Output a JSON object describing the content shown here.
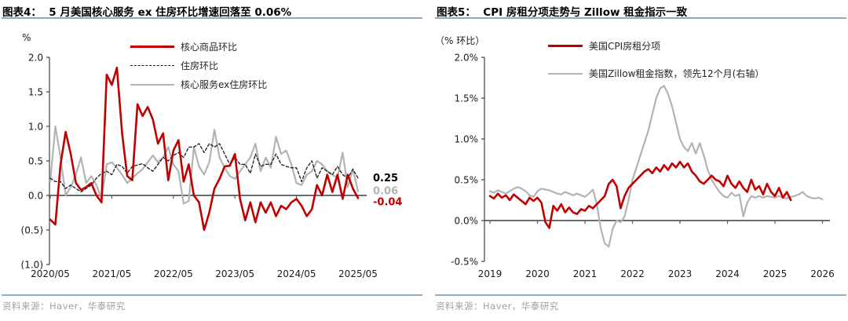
{
  "page": {
    "background": "#FFFFFF",
    "accent_rule_color": "#90A8C1",
    "source_text_color": "#A0A0A0"
  },
  "panels": [
    {
      "title": "图表4：  5 月美国核心服务 ex 住房环比增速回落至 0.06%",
      "source": "资料来源：Haver，华泰研究"
    },
    {
      "title": "图表5：  CPI 房租分项走势与 Zillow 租金指示一致",
      "source": "资料来源：Haver，华泰研究"
    }
  ],
  "chart_data": [
    {
      "type": "line",
      "title": "5月美国核心服务ex住房环比增速回落至0.06%",
      "unit": "%",
      "x_unit": "month",
      "x_start": "2020/05",
      "ylim": [
        -1.0,
        2.0
      ],
      "grid": false,
      "legend_position": "top-center",
      "y_ticks": [
        {
          "label": "2.0",
          "value": 2.0
        },
        {
          "label": "1.5",
          "value": 1.5
        },
        {
          "label": "1.0",
          "value": 1.0
        },
        {
          "label": "0.5",
          "value": 0.5
        },
        {
          "label": "0.0",
          "value": 0.0
        },
        {
          "label": "(0.5)",
          "value": -0.5
        },
        {
          "label": "(1.0)",
          "value": -1.0
        }
      ],
      "x_ticks": [
        {
          "label": "2020/05",
          "month": 0
        },
        {
          "label": "2021/05",
          "month": 12
        },
        {
          "label": "2022/05",
          "month": 24
        },
        {
          "label": "2023/05",
          "month": 36
        },
        {
          "label": "2024/05",
          "month": 48
        },
        {
          "label": "2025/05",
          "month": 60
        }
      ],
      "series": [
        {
          "name": "核心商品环比",
          "color": "#C00000",
          "style": "solid",
          "width": 2.6,
          "values": [
            -0.35,
            -0.42,
            0.45,
            0.92,
            0.6,
            0.18,
            0.08,
            0.12,
            0.18,
            0.0,
            -0.1,
            1.75,
            1.6,
            1.85,
            0.9,
            0.28,
            0.22,
            1.32,
            1.15,
            1.28,
            1.1,
            0.75,
            0.9,
            0.22,
            0.65,
            0.8,
            0.2,
            0.45,
            0.0,
            -0.1,
            -0.5,
            -0.25,
            0.1,
            0.24,
            0.42,
            0.43,
            0.6,
            -0.05,
            -0.36,
            -0.1,
            -0.39,
            -0.1,
            -0.25,
            -0.1,
            -0.3,
            -0.15,
            -0.2,
            -0.1,
            -0.05,
            -0.15,
            -0.3,
            -0.2,
            0.15,
            0.0,
            0.3,
            0.05,
            0.3,
            -0.05,
            0.3,
            0.1,
            -0.04
          ]
        },
        {
          "name": "住房环比",
          "color": "#1A1A1A",
          "style": "dashed",
          "width": 1.3,
          "values": [
            0.25,
            0.2,
            0.2,
            0.1,
            0.15,
            0.1,
            0.05,
            0.1,
            0.15,
            0.25,
            0.32,
            0.35,
            0.3,
            0.45,
            0.42,
            0.32,
            0.42,
            0.44,
            0.46,
            0.4,
            0.35,
            0.45,
            0.55,
            0.5,
            0.58,
            0.62,
            0.55,
            0.7,
            0.7,
            0.75,
            0.62,
            0.75,
            0.7,
            0.75,
            0.6,
            0.45,
            0.55,
            0.45,
            0.45,
            0.32,
            0.6,
            0.42,
            0.45,
            0.45,
            0.6,
            0.45,
            0.42,
            0.4,
            0.4,
            0.2,
            0.4,
            0.5,
            0.25,
            0.4,
            0.35,
            0.3,
            0.42,
            0.3,
            0.25,
            0.38,
            0.25
          ]
        },
        {
          "name": "核心服务ex住房环比",
          "color": "#B3B3B3",
          "style": "solid",
          "width": 2.2,
          "values": [
            0.2,
            1.0,
            0.55,
            0.0,
            0.12,
            0.3,
            0.55,
            0.18,
            0.28,
            0.15,
            -0.05,
            0.45,
            0.48,
            0.4,
            0.3,
            0.18,
            0.25,
            0.32,
            0.38,
            0.48,
            0.58,
            0.48,
            0.55,
            0.7,
            0.45,
            0.35,
            -0.12,
            -0.08,
            0.7,
            0.42,
            0.3,
            0.48,
            0.95,
            0.55,
            0.4,
            0.28,
            0.24,
            0.35,
            0.45,
            0.55,
            0.75,
            0.35,
            0.55,
            0.4,
            0.85,
            0.6,
            0.65,
            0.45,
            0.18,
            0.15,
            0.3,
            0.35,
            0.5,
            0.45,
            0.35,
            0.3,
            0.25,
            0.62,
            0.12,
            0.38,
            0.06
          ]
        }
      ],
      "annotations": [
        {
          "text": "0.25",
          "value": 0.25,
          "color": "#000000"
        },
        {
          "text": "0.06",
          "value": 0.06,
          "color": "#B3B3B3"
        },
        {
          "text": "-0.04",
          "value": -0.04,
          "color": "#C00000"
        }
      ]
    },
    {
      "type": "line",
      "title": "CPI房租分项走势与Zillow租金指示一致",
      "unit": "（% 环比）",
      "x_unit": "month",
      "x_start": "2019/01",
      "ylim": [
        -0.5,
        2.0
      ],
      "grid": false,
      "legend_position": "top-center",
      "y_ticks": [
        {
          "label": "2.0%",
          "value": 2.0
        },
        {
          "label": "1.5%",
          "value": 1.5
        },
        {
          "label": "1.0%",
          "value": 1.0
        },
        {
          "label": "0.5%",
          "value": 0.5
        },
        {
          "label": "0.0%",
          "value": 0.0
        },
        {
          "label": "-0.5%",
          "value": -0.5
        }
      ],
      "x_ticks": [
        {
          "label": "2019",
          "month": 0
        },
        {
          "label": "2020",
          "month": 12
        },
        {
          "label": "2021",
          "month": 24
        },
        {
          "label": "2022",
          "month": 36
        },
        {
          "label": "2023",
          "month": 48
        },
        {
          "label": "2024",
          "month": 60
        },
        {
          "label": "2025",
          "month": 72
        },
        {
          "label": "2026",
          "month": 84
        }
      ],
      "series": [
        {
          "name": "美国CPI房租分项",
          "color": "#C00000",
          "style": "solid",
          "width": 2.6,
          "values": [
            0.3,
            0.27,
            0.33,
            0.28,
            0.31,
            0.25,
            0.32,
            0.28,
            0.24,
            0.2,
            0.28,
            0.24,
            0.28,
            0.22,
            -0.02,
            -0.09,
            0.18,
            0.12,
            0.2,
            0.1,
            0.16,
            0.1,
            0.08,
            0.14,
            0.12,
            0.18,
            0.15,
            0.2,
            0.25,
            0.3,
            0.45,
            0.5,
            0.42,
            0.15,
            0.3,
            0.4,
            0.45,
            0.5,
            0.55,
            0.6,
            0.63,
            0.58,
            0.65,
            0.6,
            0.68,
            0.62,
            0.7,
            0.65,
            0.72,
            0.65,
            0.7,
            0.6,
            0.55,
            0.48,
            0.45,
            0.5,
            0.55,
            0.5,
            0.48,
            0.42,
            0.55,
            0.45,
            0.4,
            0.48,
            0.4,
            0.35,
            0.5,
            0.38,
            0.42,
            0.32,
            0.45,
            0.35,
            0.3,
            0.4,
            0.28,
            0.35,
            0.25
          ]
        },
        {
          "name": "美国Zillow租金指数，领先12个月(右轴）",
          "color": "#B3B3B3",
          "style": "solid",
          "width": 2.2,
          "values": [
            0.36,
            0.34,
            0.37,
            0.35,
            0.33,
            0.36,
            0.39,
            0.41,
            0.39,
            0.36,
            0.31,
            0.29,
            0.36,
            0.39,
            0.38,
            0.37,
            0.35,
            0.33,
            0.32,
            0.35,
            0.33,
            0.31,
            0.33,
            0.31,
            0.29,
            0.33,
            0.38,
            0.2,
            -0.1,
            -0.28,
            -0.32,
            -0.1,
            0.0,
            -0.02,
            0.05,
            0.25,
            0.5,
            0.65,
            0.8,
            0.95,
            1.1,
            1.3,
            1.5,
            1.62,
            1.65,
            1.55,
            1.4,
            1.2,
            1.0,
            0.9,
            0.85,
            0.95,
            0.82,
            0.95,
            0.8,
            0.62,
            0.5,
            0.42,
            0.35,
            0.3,
            0.28,
            0.34,
            0.3,
            0.32,
            0.05,
            0.22,
            0.3,
            0.28,
            0.3,
            0.28,
            0.3,
            0.29,
            0.28,
            0.3,
            0.28,
            0.27,
            0.29,
            0.3,
            0.32,
            0.35,
            0.3,
            0.28,
            0.27,
            0.28,
            0.26
          ]
        }
      ],
      "annotations": []
    }
  ]
}
